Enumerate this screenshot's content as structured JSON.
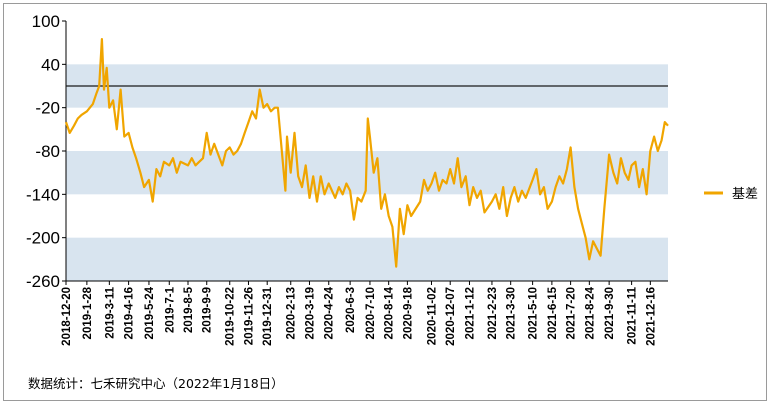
{
  "chart_data": {
    "type": "line",
    "title": "",
    "xlabel": "",
    "ylabel": "",
    "ylim": [
      -260,
      100
    ],
    "yticks": [
      100,
      40,
      -20,
      -80,
      -140,
      -200,
      -260
    ],
    "band_ranges": [
      [
        -20,
        40
      ],
      [
        -140,
        -80
      ],
      [
        -260,
        -200
      ]
    ],
    "reference_line": 10,
    "xlim": [
      "2018-12-20",
      "2022-01-18"
    ],
    "xticks": [
      "2018-12-20",
      "2019-1-28",
      "2019-3-11",
      "2019-4-16",
      "2019-5-24",
      "2019-7-1",
      "2019-8-5",
      "2019-9-9",
      "2019-10-22",
      "2019-11-26",
      "2019-12-31",
      "2020-2-13",
      "2020-3-19",
      "2020-4-24",
      "2020-6-3",
      "2020-7-10",
      "2020-8-14",
      "2020-9-18",
      "2020-11-02",
      "2020-12-07",
      "2021-1-12",
      "2021-2-23",
      "2021-3-30",
      "2021-5-10",
      "2021-6-15",
      "2021-7-20",
      "2021-8-24",
      "2021-9-30",
      "2021-11-11",
      "2021-12-16"
    ],
    "legend_position": "right",
    "grid": false,
    "colors": {
      "series": "#f0a500",
      "band": "#d8e4ef",
      "reference": "#1a1a1a"
    },
    "series": [
      {
        "name": "基差",
        "points": [
          [
            "2018-12-20",
            -40
          ],
          [
            "2018-12-27",
            -55
          ],
          [
            "2019-01-04",
            -45
          ],
          [
            "2019-01-11",
            -35
          ],
          [
            "2019-01-18",
            -30
          ],
          [
            "2019-01-28",
            -25
          ],
          [
            "2019-02-08",
            -15
          ],
          [
            "2019-02-15",
            0
          ],
          [
            "2019-02-20",
            10
          ],
          [
            "2019-02-25",
            75
          ],
          [
            "2019-03-01",
            5
          ],
          [
            "2019-03-06",
            35
          ],
          [
            "2019-03-11",
            -20
          ],
          [
            "2019-03-18",
            -10
          ],
          [
            "2019-03-25",
            -50
          ],
          [
            "2019-04-01",
            5
          ],
          [
            "2019-04-08",
            -60
          ],
          [
            "2019-04-16",
            -55
          ],
          [
            "2019-04-23",
            -75
          ],
          [
            "2019-04-30",
            -90
          ],
          [
            "2019-05-08",
            -110
          ],
          [
            "2019-05-15",
            -130
          ],
          [
            "2019-05-24",
            -120
          ],
          [
            "2019-05-31",
            -150
          ],
          [
            "2019-06-07",
            -105
          ],
          [
            "2019-06-14",
            -115
          ],
          [
            "2019-06-21",
            -95
          ],
          [
            "2019-07-01",
            -100
          ],
          [
            "2019-07-08",
            -90
          ],
          [
            "2019-07-15",
            -110
          ],
          [
            "2019-07-22",
            -95
          ],
          [
            "2019-08-05",
            -100
          ],
          [
            "2019-08-12",
            -90
          ],
          [
            "2019-08-19",
            -100
          ],
          [
            "2019-08-26",
            -95
          ],
          [
            "2019-09-02",
            -90
          ],
          [
            "2019-09-09",
            -55
          ],
          [
            "2019-09-16",
            -85
          ],
          [
            "2019-09-23",
            -70
          ],
          [
            "2019-10-08",
            -100
          ],
          [
            "2019-10-15",
            -80
          ],
          [
            "2019-10-22",
            -75
          ],
          [
            "2019-10-29",
            -85
          ],
          [
            "2019-11-05",
            -80
          ],
          [
            "2019-11-12",
            -70
          ],
          [
            "2019-11-19",
            -55
          ],
          [
            "2019-11-26",
            -40
          ],
          [
            "2019-12-03",
            -25
          ],
          [
            "2019-12-10",
            -35
          ],
          [
            "2019-12-17",
            5
          ],
          [
            "2019-12-24",
            -20
          ],
          [
            "2019-12-31",
            -15
          ],
          [
            "2020-01-07",
            -25
          ],
          [
            "2020-01-14",
            -20
          ],
          [
            "2020-01-20",
            -20
          ],
          [
            "2020-02-03",
            -135
          ],
          [
            "2020-02-06",
            -60
          ],
          [
            "2020-02-13",
            -110
          ],
          [
            "2020-02-20",
            -55
          ],
          [
            "2020-02-27",
            -115
          ],
          [
            "2020-03-05",
            -130
          ],
          [
            "2020-03-12",
            -100
          ],
          [
            "2020-03-19",
            -145
          ],
          [
            "2020-03-26",
            -115
          ],
          [
            "2020-04-02",
            -150
          ],
          [
            "2020-04-09",
            -115
          ],
          [
            "2020-04-16",
            -140
          ],
          [
            "2020-04-24",
            -125
          ],
          [
            "2020-05-06",
            -145
          ],
          [
            "2020-05-13",
            -130
          ],
          [
            "2020-05-20",
            -140
          ],
          [
            "2020-05-27",
            -125
          ],
          [
            "2020-06-03",
            -135
          ],
          [
            "2020-06-10",
            -175
          ],
          [
            "2020-06-17",
            -145
          ],
          [
            "2020-06-24",
            -150
          ],
          [
            "2020-07-02",
            -135
          ],
          [
            "2020-07-06",
            -35
          ],
          [
            "2020-07-10",
            -60
          ],
          [
            "2020-07-17",
            -110
          ],
          [
            "2020-07-24",
            -90
          ],
          [
            "2020-07-31",
            -160
          ],
          [
            "2020-08-07",
            -140
          ],
          [
            "2020-08-14",
            -170
          ],
          [
            "2020-08-21",
            -185
          ],
          [
            "2020-08-28",
            -240
          ],
          [
            "2020-09-04",
            -160
          ],
          [
            "2020-09-11",
            -195
          ],
          [
            "2020-09-18",
            -155
          ],
          [
            "2020-09-25",
            -170
          ],
          [
            "2020-10-12",
            -150
          ],
          [
            "2020-10-19",
            -120
          ],
          [
            "2020-10-26",
            -135
          ],
          [
            "2020-11-02",
            -125
          ],
          [
            "2020-11-09",
            -110
          ],
          [
            "2020-11-16",
            -135
          ],
          [
            "2020-11-23",
            -120
          ],
          [
            "2020-11-30",
            -125
          ],
          [
            "2020-12-07",
            -105
          ],
          [
            "2020-12-14",
            -125
          ],
          [
            "2020-12-21",
            -90
          ],
          [
            "2020-12-28",
            -130
          ],
          [
            "2021-01-05",
            -115
          ],
          [
            "2021-01-12",
            -155
          ],
          [
            "2021-01-19",
            -130
          ],
          [
            "2021-01-26",
            -145
          ],
          [
            "2021-02-02",
            -135
          ],
          [
            "2021-02-09",
            -165
          ],
          [
            "2021-02-23",
            -150
          ],
          [
            "2021-03-02",
            -140
          ],
          [
            "2021-03-09",
            -160
          ],
          [
            "2021-03-16",
            -130
          ],
          [
            "2021-03-23",
            -170
          ],
          [
            "2021-03-30",
            -145
          ],
          [
            "2021-04-06",
            -130
          ],
          [
            "2021-04-13",
            -150
          ],
          [
            "2021-04-20",
            -135
          ],
          [
            "2021-04-27",
            -145
          ],
          [
            "2021-05-10",
            -120
          ],
          [
            "2021-05-17",
            -105
          ],
          [
            "2021-05-24",
            -140
          ],
          [
            "2021-05-31",
            -130
          ],
          [
            "2021-06-07",
            -160
          ],
          [
            "2021-06-15",
            -150
          ],
          [
            "2021-06-22",
            -130
          ],
          [
            "2021-06-29",
            -115
          ],
          [
            "2021-07-06",
            -125
          ],
          [
            "2021-07-13",
            -105
          ],
          [
            "2021-07-20",
            -75
          ],
          [
            "2021-07-27",
            -130
          ],
          [
            "2021-08-03",
            -160
          ],
          [
            "2021-08-10",
            -180
          ],
          [
            "2021-08-17",
            -200
          ],
          [
            "2021-08-24",
            -230
          ],
          [
            "2021-08-31",
            -205
          ],
          [
            "2021-09-07",
            -215
          ],
          [
            "2021-09-14",
            -225
          ],
          [
            "2021-09-21",
            -160
          ],
          [
            "2021-09-30",
            -85
          ],
          [
            "2021-10-08",
            -110
          ],
          [
            "2021-10-15",
            -125
          ],
          [
            "2021-10-22",
            -90
          ],
          [
            "2021-10-29",
            -110
          ],
          [
            "2021-11-05",
            -120
          ],
          [
            "2021-11-11",
            -100
          ],
          [
            "2021-11-18",
            -95
          ],
          [
            "2021-11-25",
            -130
          ],
          [
            "2021-12-02",
            -105
          ],
          [
            "2021-12-09",
            -140
          ],
          [
            "2021-12-16",
            -80
          ],
          [
            "2021-12-23",
            -60
          ],
          [
            "2021-12-30",
            -80
          ],
          [
            "2022-01-06",
            -65
          ],
          [
            "2022-01-12",
            -40
          ],
          [
            "2022-01-18",
            -45
          ]
        ]
      }
    ]
  },
  "footer": {
    "source": "数据统计：七禾研究中心（2022年1月18日）"
  }
}
